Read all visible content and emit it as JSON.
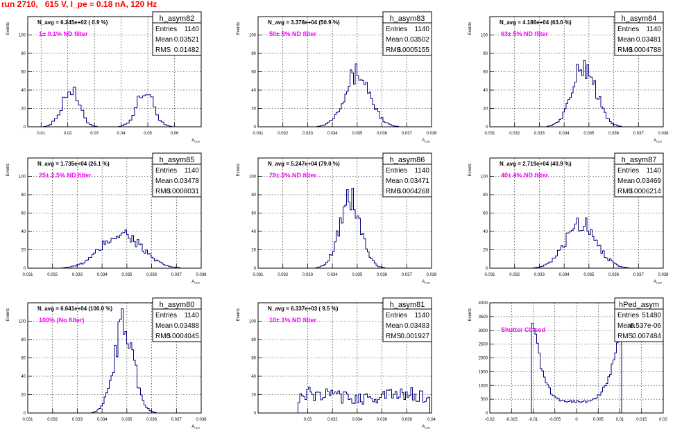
{
  "page_title": "run 2710,   615 V, I_pe ≈ 0.18 nA, 120 Hz",
  "colors": {
    "histogram": "#00007f",
    "annotation": "#ff00ff",
    "title": "#ff0000",
    "grid": "#000000"
  },
  "chart_data": [
    {
      "type": "histogram",
      "name": "h_asym82",
      "ylabel": "Events",
      "xlabel": "A_LED",
      "xlim": [
        0.005,
        0.07
      ],
      "ylim": [
        0,
        120
      ],
      "xticks": [
        0.01,
        0.02,
        0.03,
        0.04,
        0.05,
        0.06
      ],
      "xtick_labels": [
        "0.01",
        "0.02",
        "0.03",
        "0.04",
        "0.05",
        "0.06"
      ],
      "yticks": [
        0,
        20,
        40,
        60,
        80,
        100
      ],
      "ytick_labels": [
        "0",
        "20",
        "40",
        "60",
        "80",
        "100"
      ],
      "nbins": 65,
      "peaks": [
        {
          "mu": 0.021,
          "sigma": 0.0032,
          "amp": 40
        },
        {
          "mu": 0.049,
          "sigma": 0.0032,
          "amp": 38
        }
      ],
      "stats": {
        "entries": "1140",
        "mean": "0.03521",
        "rms": "0.01482"
      },
      "navg": "N_avg = 6.245e+02 ( 0.9 %)",
      "filter": "1± 0.1% ND filter"
    },
    {
      "type": "histogram",
      "name": "h_asym83",
      "ylabel": "Events",
      "xlabel": "A_LED",
      "xlim": [
        0.031,
        0.038
      ],
      "ylim": [
        0,
        120
      ],
      "xticks": [
        0.031,
        0.032,
        0.033,
        0.034,
        0.035,
        0.036,
        0.037,
        0.038
      ],
      "xtick_labels": [
        "0.031",
        "0.032",
        "0.033",
        "0.034",
        "0.035",
        "0.036",
        "0.037",
        "0.038"
      ],
      "yticks": [
        0,
        20,
        40,
        60,
        80,
        100
      ],
      "ytick_labels": [
        "0",
        "20",
        "40",
        "60",
        "80",
        "100"
      ],
      "nbins": 100,
      "peaks": [
        {
          "mu": 0.035,
          "sigma": 0.00052,
          "amp": 58
        }
      ],
      "stats": {
        "entries": "1140",
        "mean": "0.03502",
        "rms": "0.0005155"
      },
      "navg": "N_avg = 3.378e+04 (50.9 %)",
      "filter": "50± 5% ND filter"
    },
    {
      "type": "histogram",
      "name": "h_asym84",
      "ylabel": "Events",
      "xlabel": "A_LED",
      "xlim": [
        0.031,
        0.038
      ],
      "ylim": [
        0,
        120
      ],
      "xticks": [
        0.031,
        0.032,
        0.033,
        0.034,
        0.035,
        0.036,
        0.037,
        0.038
      ],
      "xtick_labels": [
        "0.031",
        "0.032",
        "0.033",
        "0.034",
        "0.035",
        "0.036",
        "0.037",
        "0.038"
      ],
      "yticks": [
        0,
        20,
        40,
        60,
        80,
        100
      ],
      "ytick_labels": [
        "0",
        "20",
        "40",
        "60",
        "80",
        "100"
      ],
      "nbins": 100,
      "peaks": [
        {
          "mu": 0.03481,
          "sigma": 0.00048,
          "amp": 66
        }
      ],
      "stats": {
        "entries": "1140",
        "mean": "0.03481",
        "rms": "0.0004788"
      },
      "navg": "N_avg = 4.186e+04 (63.0 %)",
      "filter": "63± 5% ND filter"
    },
    {
      "type": "histogram",
      "name": "h_asym85",
      "ylabel": "Events",
      "xlabel": "A_LED",
      "xlim": [
        0.031,
        0.038
      ],
      "ylim": [
        0,
        120
      ],
      "xticks": [
        0.031,
        0.032,
        0.033,
        0.034,
        0.035,
        0.036,
        0.037,
        0.038
      ],
      "xtick_labels": [
        "0.031",
        "0.032",
        "0.033",
        "0.034",
        "0.035",
        "0.036",
        "0.037",
        "0.038"
      ],
      "yticks": [
        0,
        20,
        40,
        60,
        80,
        100
      ],
      "ytick_labels": [
        "0",
        "20",
        "40",
        "60",
        "80",
        "100"
      ],
      "nbins": 100,
      "peaks": [
        {
          "mu": 0.03478,
          "sigma": 0.0008,
          "amp": 38
        }
      ],
      "stats": {
        "entries": "1140",
        "mean": "0.03478",
        "rms": "0.0008031"
      },
      "navg": "N_avg = 1.735e+04 (26.1 %)",
      "filter": "25± 2.5% ND filter"
    },
    {
      "type": "histogram",
      "name": "h_asym86",
      "ylabel": "Events",
      "xlabel": "A_LED",
      "xlim": [
        0.031,
        0.038
      ],
      "ylim": [
        0,
        120
      ],
      "xticks": [
        0.031,
        0.032,
        0.033,
        0.034,
        0.035,
        0.036,
        0.037,
        0.038
      ],
      "xtick_labels": [
        "0.031",
        "0.032",
        "0.033",
        "0.034",
        "0.035",
        "0.036",
        "0.037",
        "0.038"
      ],
      "yticks": [
        0,
        20,
        40,
        60,
        80,
        100
      ],
      "ytick_labels": [
        "0",
        "20",
        "40",
        "60",
        "80",
        "100"
      ],
      "nbins": 100,
      "peaks": [
        {
          "mu": 0.03471,
          "sigma": 0.00043,
          "amp": 75
        }
      ],
      "stats": {
        "entries": "1140",
        "mean": "0.03471",
        "rms": "0.0004268"
      },
      "navg": "N_avg = 5.247e+04 (79.0 %)",
      "filter": "79± 5% ND filter"
    },
    {
      "type": "histogram",
      "name": "h_asym87",
      "ylabel": "Events",
      "xlabel": "A_LED",
      "xlim": [
        0.031,
        0.038
      ],
      "ylim": [
        0,
        120
      ],
      "xticks": [
        0.031,
        0.032,
        0.033,
        0.034,
        0.035,
        0.036,
        0.037,
        0.038
      ],
      "xtick_labels": [
        "0.031",
        "0.032",
        "0.033",
        "0.034",
        "0.035",
        "0.036",
        "0.037",
        "0.038"
      ],
      "yticks": [
        0,
        20,
        40,
        60,
        80,
        100
      ],
      "ytick_labels": [
        "0",
        "20",
        "40",
        "60",
        "80",
        "100"
      ],
      "nbins": 100,
      "peaks": [
        {
          "mu": 0.03469,
          "sigma": 0.00062,
          "amp": 50
        }
      ],
      "stats": {
        "entries": "1140",
        "mean": "0.03469",
        "rms": "0.0006214"
      },
      "navg": "N_avg = 2.719e+04 (40.9 %)",
      "filter": "40± 4% ND filter"
    },
    {
      "type": "histogram",
      "name": "h_asym80",
      "ylabel": "Events",
      "xlabel": "A_LED",
      "xlim": [
        0.031,
        0.038
      ],
      "ylim": [
        0,
        120
      ],
      "xticks": [
        0.031,
        0.032,
        0.033,
        0.034,
        0.035,
        0.036,
        0.037,
        0.038
      ],
      "xtick_labels": [
        "0.031",
        "0.032",
        "0.033",
        "0.034",
        "0.035",
        "0.036",
        "0.037",
        "0.038"
      ],
      "yticks": [
        0,
        20,
        40,
        60,
        80,
        100
      ],
      "ytick_labels": [
        "0",
        "20",
        "40",
        "60",
        "80",
        "100"
      ],
      "nbins": 100,
      "peaks": [
        {
          "mu": 0.03488,
          "sigma": 0.0004,
          "amp": 95
        }
      ],
      "stats": {
        "entries": "1140",
        "mean": "0.03488",
        "rms": "0.0004045"
      },
      "navg": "N_avg = 6.641e+04 (100.0 %)",
      "filter": "100% (No filter)"
    },
    {
      "type": "histogram",
      "name": "h_asym81",
      "ylabel": "Events",
      "xlabel": "A_LED",
      "xlim": [
        0.026,
        0.04
      ],
      "ylim": [
        0,
        120
      ],
      "xticks": [
        0.03,
        0.032,
        0.034,
        0.036,
        0.038,
        0.04
      ],
      "xtick_labels": [
        "0.03",
        "0.032",
        "0.034",
        "0.036",
        "0.038",
        "0.04"
      ],
      "yticks": [
        0,
        20,
        40,
        60,
        80,
        100
      ],
      "ytick_labels": [
        "0",
        "20",
        "40",
        "60",
        "80",
        "100"
      ],
      "nbins": 100,
      "peaks": [
        {
          "mu": 0.0348,
          "sigma": 0.0019,
          "amp": 22
        }
      ],
      "flat": true,
      "stats": {
        "entries": "1140",
        "mean": "0.03483",
        "rms": "0.001927"
      },
      "navg": "N_avg = 6.337e+03 ( 9.5 %)",
      "filter": "10± 1% ND filter"
    },
    {
      "type": "histogram",
      "name": "hPed_asym",
      "ylabel": "Events",
      "xlabel": "",
      "xlim": [
        -0.02,
        0.02
      ],
      "ylim": [
        0,
        4000
      ],
      "xticks": [
        -0.02,
        -0.015,
        -0.01,
        -0.005,
        0,
        0.005,
        0.01,
        0.015,
        0.02
      ],
      "xtick_labels": [
        "-0.02",
        "-0.015",
        "-0.01",
        "-0.005",
        "0",
        "0.005",
        "0.01",
        "0.015",
        "0.02"
      ],
      "yticks": [
        0,
        500,
        1000,
        1500,
        2000,
        2500,
        3000,
        3500
      ],
      "ytick_labels": [
        "0",
        "500",
        "1000",
        "1500",
        "2000",
        "2500",
        "3000",
        "3500"
      ],
      "ytop_label": "4000",
      "nbins": 100,
      "pedestal": true,
      "stats": {
        "entries": "51480",
        "mean": "-6.537e-06",
        "rms": "0.007484"
      },
      "navg": "",
      "filter": "Shutter Closed"
    }
  ]
}
